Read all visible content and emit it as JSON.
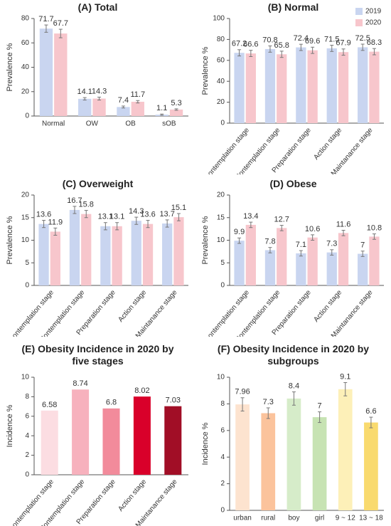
{
  "chart_data": [
    {
      "type": "bar",
      "title": "(A) Total",
      "ylabel": "Prevalence %",
      "categories": [
        "Normal",
        "OW",
        "OB",
        "sOB"
      ],
      "series": [
        {
          "name": "2019",
          "color": "#c9d5f0",
          "values": [
            71.7,
            14.1,
            7.4,
            1.1
          ],
          "errors": [
            3,
            1,
            0.8,
            0.5
          ]
        },
        {
          "name": "2020",
          "color": "#f7c6cc",
          "values": [
            67.7,
            14.3,
            11.7,
            5.3
          ],
          "errors": [
            3.5,
            1.2,
            1,
            0.6
          ]
        }
      ],
      "ylim": [
        0,
        80
      ],
      "yticks": [
        0,
        20,
        40,
        60,
        80
      ]
    },
    {
      "type": "bar",
      "title": "(B)  Normal",
      "ylabel": "Prevalence %",
      "categories": [
        "Precontemplation stage",
        "Contemplation stage",
        "Preparation stage",
        "Action stage",
        "Maintanance stage"
      ],
      "series": [
        {
          "name": "2019",
          "color": "#c9d5f0",
          "values": [
            67.2,
            70.8,
            72.4,
            71.5,
            72.5
          ],
          "errors": [
            3,
            3,
            3,
            3,
            3
          ]
        },
        {
          "name": "2020",
          "color": "#f7c6cc",
          "values": [
            66.6,
            65.8,
            69.6,
            67.9,
            68.3
          ],
          "errors": [
            3,
            3,
            3,
            3,
            3
          ]
        }
      ],
      "ylim": [
        0,
        100
      ],
      "yticks": [
        0,
        20,
        40,
        60,
        80,
        100
      ],
      "legend": "top-right"
    },
    {
      "type": "bar",
      "title": "(C)  Overweight",
      "ylabel": "Prevalence %",
      "categories": [
        "Precontemplation stage",
        "Contemplation stage",
        "Preparation stage",
        "Action stage",
        "Maintanance stage"
      ],
      "series": [
        {
          "name": "2019",
          "color": "#c9d5f0",
          "values": [
            13.6,
            16.7,
            13.1,
            14.3,
            13.7
          ],
          "errors": [
            0.8,
            0.8,
            0.8,
            0.8,
            0.8
          ]
        },
        {
          "name": "2020",
          "color": "#f7c6cc",
          "values": [
            11.9,
            15.8,
            13.1,
            13.6,
            15.1
          ],
          "errors": [
            0.8,
            0.8,
            0.8,
            0.8,
            0.8
          ]
        }
      ],
      "ylim": [
        0,
        20
      ],
      "yticks": [
        0,
        5,
        10,
        15,
        20
      ]
    },
    {
      "type": "bar",
      "title": "(D) Obese",
      "ylabel": "Prevalence %",
      "categories": [
        "Precontemplation stage",
        "Contemplation stage",
        "Preparation stage",
        "Action stage",
        "Maintanance stage"
      ],
      "series": [
        {
          "name": "2019",
          "color": "#c9d5f0",
          "values": [
            9.9,
            7.8,
            7.1,
            7.3,
            7
          ],
          "errors": [
            0.6,
            0.6,
            0.6,
            0.6,
            0.6
          ]
        },
        {
          "name": "2020",
          "color": "#f7c6cc",
          "values": [
            13.4,
            12.7,
            10.6,
            11.6,
            10.8
          ],
          "errors": [
            0.6,
            0.6,
            0.6,
            0.6,
            0.6
          ]
        }
      ],
      "ylim": [
        0,
        20
      ],
      "yticks": [
        0,
        5,
        10,
        15,
        20
      ]
    },
    {
      "type": "bar",
      "title": "(E) Obesity Incidence in 2020 by five stages",
      "ylabel": "Incidence %",
      "categories": [
        "Precontemplation stage",
        "Contemplation stage",
        "Preparation stage",
        "Action stage",
        "Maintanance stage"
      ],
      "values": [
        6.58,
        8.74,
        6.8,
        8.02,
        7.03
      ],
      "colors": [
        "#fcdde2",
        "#f7b1bd",
        "#f28b9b",
        "#d9002a",
        "#a10e26"
      ],
      "ylim": [
        0,
        10
      ],
      "yticks": [
        0,
        2,
        4,
        6,
        8,
        10
      ]
    },
    {
      "type": "bar",
      "title": "(F) Obesity Incidence in 2020 by subgroups",
      "ylabel": "Incidence %",
      "categories": [
        "urban",
        "rural",
        "boy",
        "girl",
        "9 ~ 12",
        "13 ~ 18"
      ],
      "values": [
        7.96,
        7.3,
        8.4,
        7,
        9.1,
        6.6
      ],
      "errors": [
        0.5,
        0.4,
        0.5,
        0.4,
        0.5,
        0.4
      ],
      "colors": [
        "#fde3cf",
        "#fbc39c",
        "#d6ecc9",
        "#c7e3b3",
        "#fdf0b8",
        "#f9da6e"
      ],
      "ylim": [
        0,
        10
      ],
      "yticks": [
        0,
        2,
        4,
        6,
        8,
        10
      ]
    }
  ]
}
